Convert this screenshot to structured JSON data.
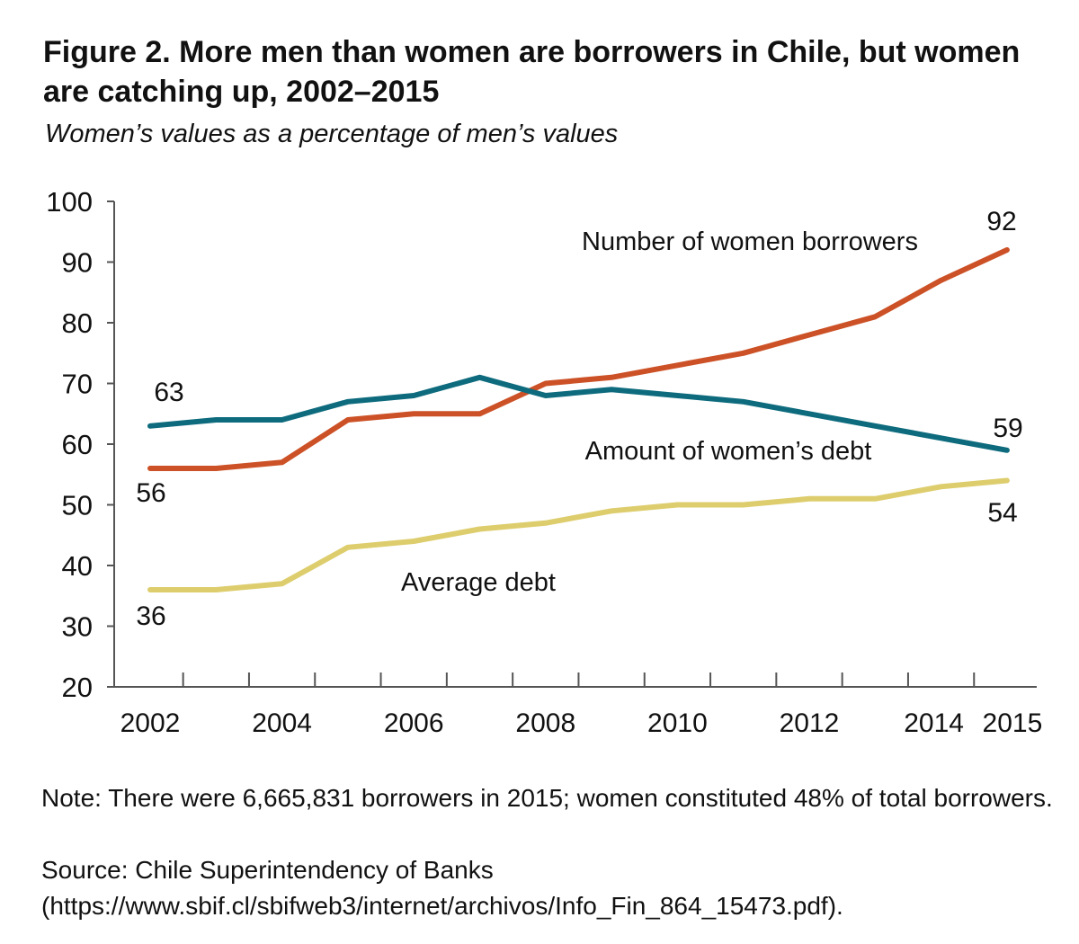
{
  "header": {
    "title": "Figure 2. More men than women are borrowers in Chile, but women are catching up, 2002–2015",
    "subtitle": "Women’s values as a percentage of men’s values"
  },
  "footer": {
    "note": "Note: There were 6,665,831 borrowers in 2015; women constituted 48% of total borrowers.",
    "source": "Source: Chile Superintendency of Banks (https://www.sbif.cl/sbifweb3/internet/archivos/Info_Fin_864_15473.pdf)."
  },
  "chart_data": {
    "type": "line",
    "title": "Figure 2. More men than women are borrowers in Chile, but women are catching up, 2002–2015",
    "subtitle": "Women’s values as a percentage of men’s values",
    "x": [
      2002,
      2003,
      2004,
      2005,
      2006,
      2007,
      2008,
      2009,
      2010,
      2011,
      2012,
      2013,
      2014,
      2015
    ],
    "x_tick_labels": [
      "2002",
      "2004",
      "2006",
      "2008",
      "2010",
      "2012",
      "2014",
      "2015"
    ],
    "y_ticks": [
      20,
      30,
      40,
      50,
      60,
      70,
      80,
      90,
      100
    ],
    "ylim": [
      20,
      100
    ],
    "grid": false,
    "legend": "none (series labeled directly on chart)",
    "series": [
      {
        "name": "Number of women borrowers",
        "color": "#cc5126",
        "values": [
          56,
          56,
          57,
          64,
          65,
          65,
          70,
          71,
          73,
          75,
          78,
          81,
          87,
          92
        ],
        "end_labels": {
          "start": "56",
          "end": "92"
        }
      },
      {
        "name": "Amount of women’s debt",
        "color": "#0d6b7d",
        "values": [
          63,
          64,
          64,
          67,
          68,
          71,
          68,
          69,
          68,
          67,
          65,
          63,
          61,
          59
        ],
        "end_labels": {
          "start": "63",
          "end": "59"
        }
      },
      {
        "name": "Average debt",
        "color": "#ddcd6d",
        "values": [
          36,
          36,
          37,
          43,
          44,
          46,
          47,
          49,
          50,
          50,
          51,
          51,
          53,
          54
        ],
        "end_labels": {
          "start": "36",
          "end": "54"
        }
      }
    ]
  }
}
